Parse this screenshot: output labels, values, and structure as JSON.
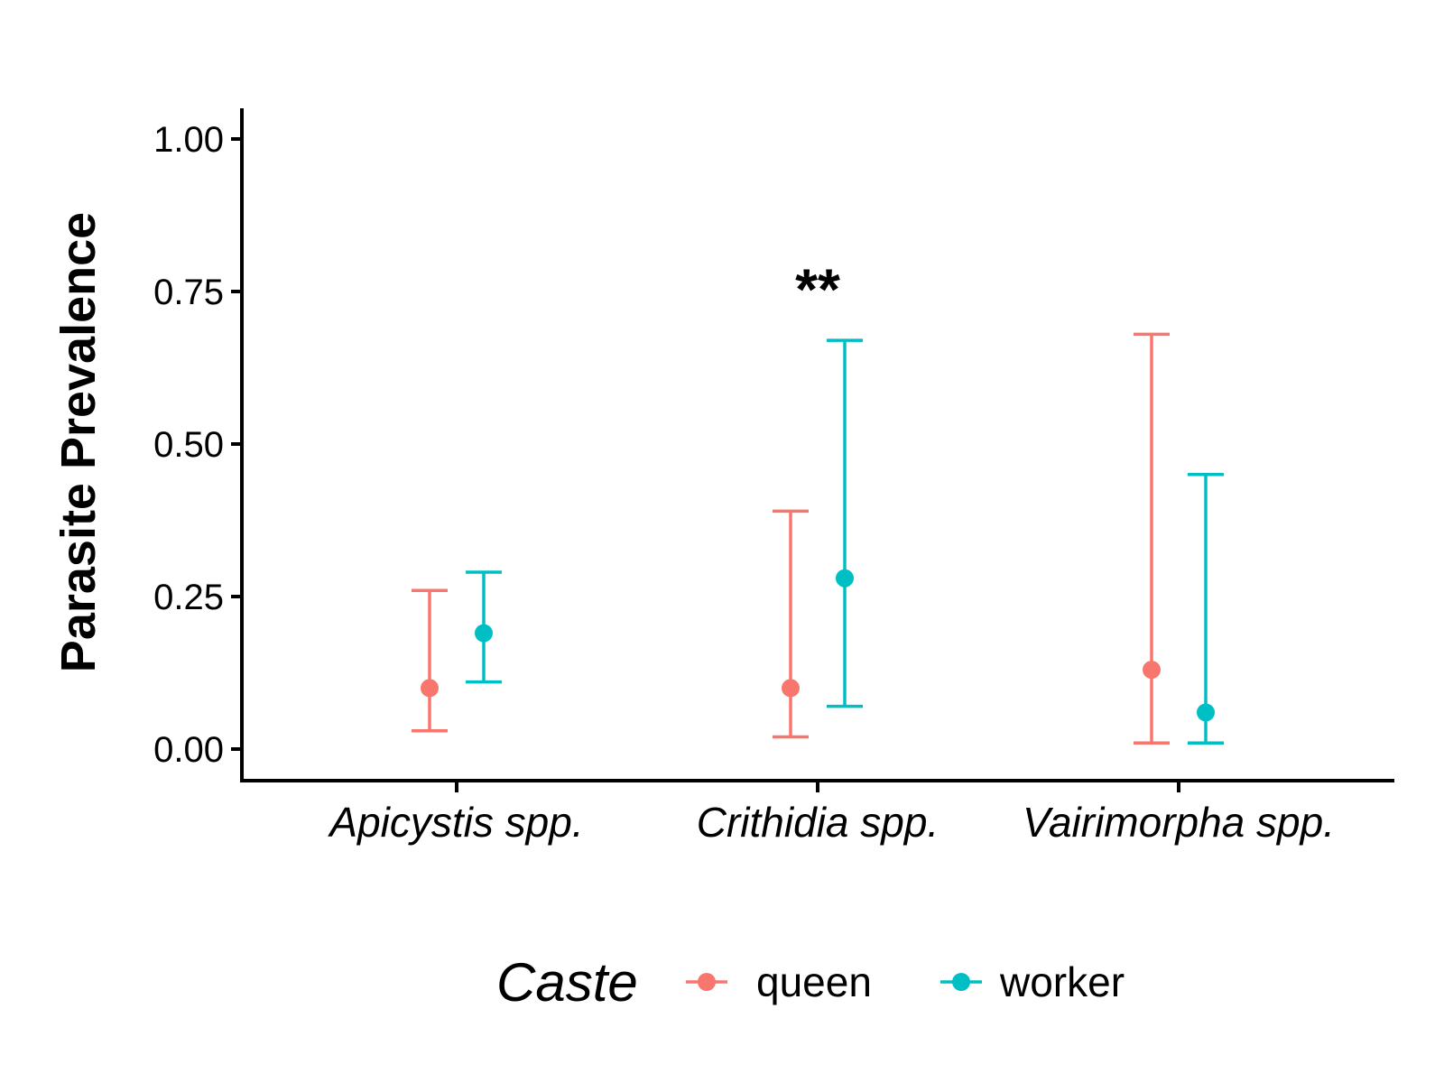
{
  "chart_data": {
    "type": "scatter",
    "ylabel": "Parasite Prevalence",
    "ylim": [
      -0.05,
      1.05
    ],
    "yticks": [
      "0.00",
      "0.25",
      "0.50",
      "0.75",
      "1.00"
    ],
    "categories": [
      "Apicystis spp.",
      "Crithidia spp.",
      "Vairimorpha spp."
    ],
    "legend_title": "Caste",
    "legend_position": "bottom",
    "series": [
      {
        "name": "queen",
        "color": "#F8766D",
        "values": [
          0.1,
          0.1,
          0.13
        ],
        "lower": [
          0.03,
          0.02,
          0.01
        ],
        "upper": [
          0.26,
          0.39,
          0.68
        ]
      },
      {
        "name": "worker",
        "color": "#00BFC4",
        "values": [
          0.19,
          0.28,
          0.06
        ],
        "lower": [
          0.11,
          0.07,
          0.01
        ],
        "upper": [
          0.29,
          0.67,
          0.45
        ]
      }
    ],
    "annotations": [
      {
        "text": "**",
        "category": "Crithidia spp.",
        "y": 0.78
      }
    ]
  }
}
